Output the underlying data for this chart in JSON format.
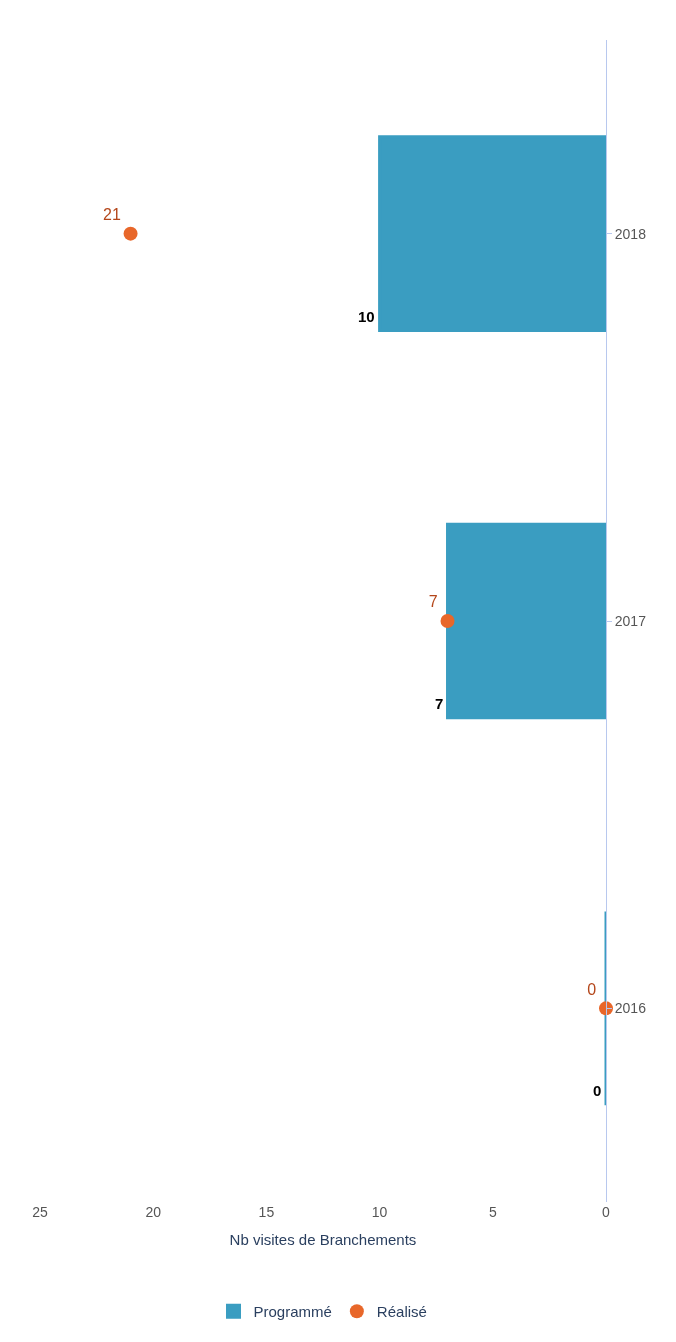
{
  "chart_data": {
    "type": "bar",
    "orientation": "horizontal",
    "xlabel": "Nb visites de Branchements",
    "categories": [
      "2018",
      "2017",
      "2016"
    ],
    "series": [
      {
        "name": "Programmé",
        "color": "#3a9dc1",
        "values": [
          10,
          7,
          0
        ]
      },
      {
        "name": "Réalisé",
        "type": "scatter",
        "color": "#e8672a",
        "values": [
          21,
          7,
          0
        ],
        "marker": "circle"
      }
    ],
    "data_labels": true,
    "xlim": [
      25,
      0
    ],
    "xticks": [
      25,
      20,
      15,
      10,
      5,
      0
    ],
    "legend": "bottom"
  }
}
